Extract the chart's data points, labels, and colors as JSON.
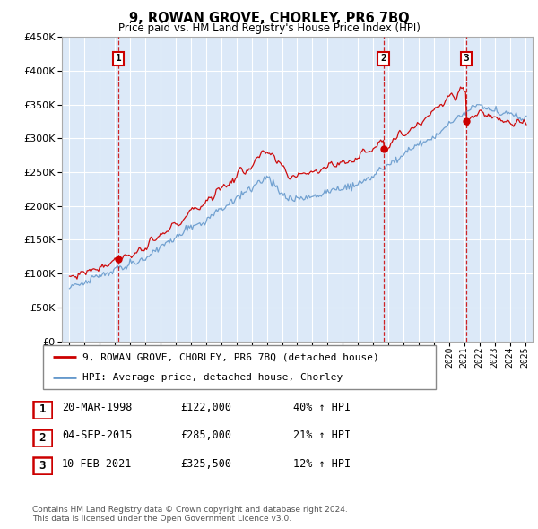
{
  "title": "9, ROWAN GROVE, CHORLEY, PR6 7BQ",
  "subtitle": "Price paid vs. HM Land Registry's House Price Index (HPI)",
  "legend_line1": "9, ROWAN GROVE, CHORLEY, PR6 7BQ (detached house)",
  "legend_line2": "HPI: Average price, detached house, Chorley",
  "footer1": "Contains HM Land Registry data © Crown copyright and database right 2024.",
  "footer2": "This data is licensed under the Open Government Licence v3.0.",
  "transactions": [
    {
      "num": 1,
      "date": "20-MAR-1998",
      "price": 122000,
      "hpi_pct": "40% ↑ HPI",
      "year": 1998.22
    },
    {
      "num": 2,
      "date": "04-SEP-2015",
      "price": 285000,
      "hpi_pct": "21% ↑ HPI",
      "year": 2015.67
    },
    {
      "num": 3,
      "date": "10-FEB-2021",
      "price": 325500,
      "hpi_pct": "12% ↑ HPI",
      "year": 2021.11
    }
  ],
  "ylim": [
    0,
    450000
  ],
  "yticks": [
    0,
    50000,
    100000,
    150000,
    200000,
    250000,
    300000,
    350000,
    400000,
    450000
  ],
  "xlim_start": 1994.5,
  "xlim_end": 2025.5,
  "bg_color": "#dce9f8",
  "red_color": "#cc0000",
  "blue_color": "#6699cc",
  "grid_color": "#ffffff"
}
